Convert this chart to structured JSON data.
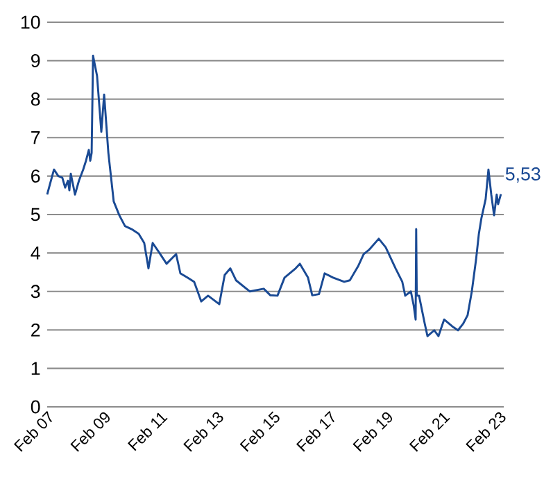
{
  "chart_data": {
    "type": "line",
    "x": [
      "2007-02-01",
      "2007-03-05",
      "2007-04-28",
      "2007-06-23",
      "2007-08-14",
      "2007-09-20",
      "2007-10-26",
      "2007-11-14",
      "2007-12-02",
      "2008-01-26",
      "2008-03-16",
      "2008-05-10",
      "2008-06-16",
      "2008-07-22",
      "2008-08-10",
      "2008-08-28",
      "2008-09-16",
      "2008-11-07",
      "2009-01-01",
      "2009-02-07",
      "2009-04-01",
      "2009-06-09",
      "2009-08-21",
      "2009-11-03",
      "2010-01-28",
      "2010-04-28",
      "2010-07-08",
      "2010-09-02",
      "2010-10-26",
      "2011-01-23",
      "2011-04-23",
      "2011-08-25",
      "2011-10-19",
      "2012-01-19",
      "2012-04-15",
      "2012-07-15",
      "2012-10-12",
      "2013-03-05",
      "2013-05-14",
      "2013-07-26",
      "2013-10-08",
      "2014-04-05",
      "2014-10-01",
      "2014-12-27",
      "2015-03-27",
      "2015-06-27",
      "2015-11-18",
      "2016-01-12",
      "2016-04-26",
      "2016-06-20",
      "2016-09-16",
      "2016-11-28",
      "2017-03-16",
      "2017-08-07",
      "2017-10-19",
      "2018-02-03",
      "2018-04-15",
      "2018-06-23",
      "2018-10-28",
      "2019-01-26",
      "2019-06-02",
      "2019-08-28",
      "2019-10-05",
      "2019-12-17",
      "2020-01-23",
      "2020-02-18",
      "2020-02-25",
      "2020-03-02",
      "2020-04-01",
      "2020-06-13",
      "2020-07-19",
      "2020-10-15",
      "2020-12-09",
      "2021-02-21",
      "2021-06-06",
      "2021-08-18",
      "2021-10-26",
      "2021-12-20",
      "2022-02-14",
      "2022-04-08",
      "2022-05-14",
      "2022-06-16",
      "2022-08-10",
      "2022-09-16",
      "2022-10-22",
      "2022-11-28",
      "2023-01-01",
      "2023-01-19",
      "2023-02-25"
    ],
    "series": [
      {
        "color": "#1a4a94",
        "values": [
          5.52,
          5.78,
          6.17,
          6.0,
          5.96,
          5.7,
          5.88,
          5.63,
          6.06,
          5.52,
          5.88,
          6.17,
          6.4,
          6.68,
          6.4,
          6.6,
          9.13,
          8.6,
          7.15,
          8.12,
          6.6,
          5.34,
          4.98,
          4.7,
          4.62,
          4.5,
          4.26,
          3.6,
          4.26,
          4.0,
          3.72,
          3.97,
          3.47,
          3.36,
          3.25,
          2.74,
          2.89,
          2.67,
          3.43,
          3.6,
          3.29,
          3.0,
          3.07,
          2.9,
          2.89,
          3.36,
          3.6,
          3.72,
          3.36,
          2.9,
          2.93,
          3.47,
          3.36,
          3.25,
          3.29,
          3.65,
          3.97,
          4.08,
          4.37,
          4.15,
          3.6,
          3.25,
          2.89,
          3.0,
          2.64,
          2.27,
          4.62,
          2.89,
          2.89,
          2.17,
          1.84,
          1.99,
          1.84,
          2.27,
          2.09,
          1.99,
          2.17,
          2.38,
          3.0,
          3.83,
          4.5,
          4.9,
          5.4,
          6.17,
          5.52,
          4.98,
          5.52,
          5.27,
          5.53
        ]
      }
    ],
    "xlim": [
      "2007-02-01",
      "2023-04-01"
    ],
    "xticks": [
      {
        "value": "2007-02-01",
        "label": "Feb 07"
      },
      {
        "value": "2009-02-01",
        "label": "Feb 09"
      },
      {
        "value": "2011-02-01",
        "label": "Feb 11"
      },
      {
        "value": "2013-02-01",
        "label": "Feb 13"
      },
      {
        "value": "2015-02-01",
        "label": "Feb 15"
      },
      {
        "value": "2017-02-01",
        "label": "Feb 17"
      },
      {
        "value": "2019-02-01",
        "label": "Feb 19"
      },
      {
        "value": "2021-02-01",
        "label": "Feb 21"
      },
      {
        "value": "2023-02-01",
        "label": "Feb 23"
      }
    ],
    "ylim": [
      0,
      10
    ],
    "yticks": [
      0,
      1,
      2,
      3,
      4,
      5,
      6,
      7,
      8,
      9,
      10
    ],
    "grid": "y",
    "annotations": [
      {
        "text": "5,53",
        "x": "2023-02-25",
        "y": 5.53
      }
    ]
  }
}
